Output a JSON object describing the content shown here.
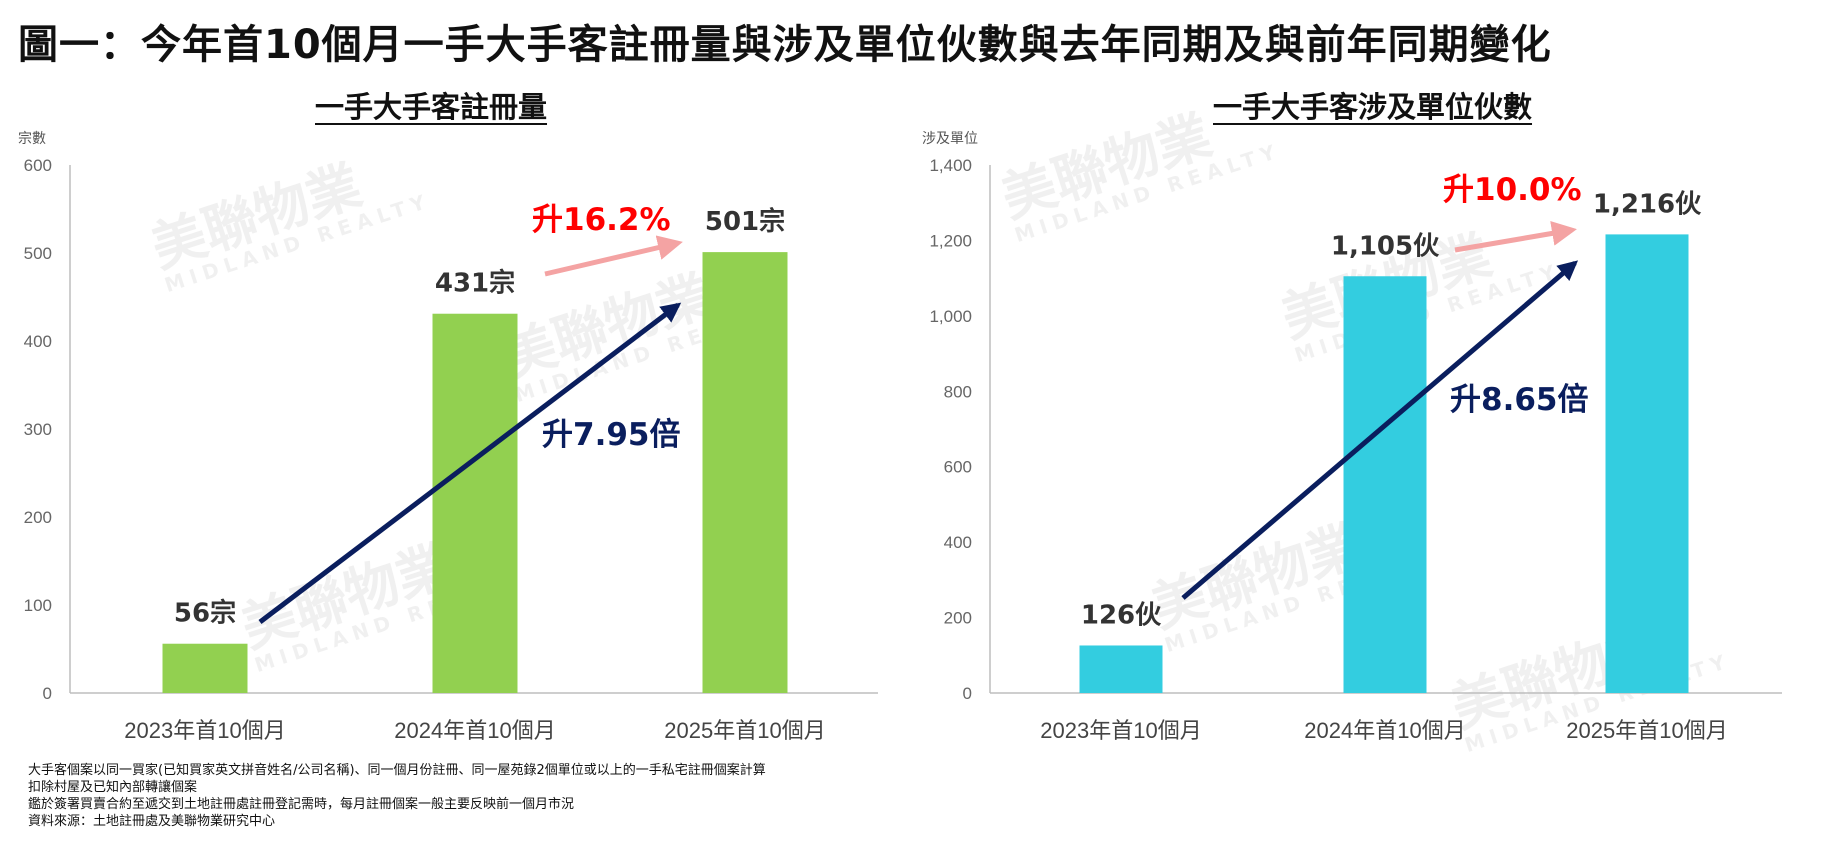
{
  "title": "圖一：今年首10個月一手大手客註冊量與涉及單位伙數與去年同期及與前年同期變化",
  "watermark": {
    "cn": "美聯物業",
    "en": "MIDLAND REALTY"
  },
  "colors": {
    "green": "#92d050",
    "cyan": "#33cde0",
    "red_arrow": "#f4a3a3",
    "navy": "#0a1e5e",
    "red_text": "#ff0000"
  },
  "chart_data": [
    {
      "type": "bar",
      "title": "一手大手客註冊量",
      "ylabel": "宗數",
      "categories": [
        "2023年首10個月",
        "2024年首10個月",
        "2025年首10個月"
      ],
      "values": [
        56,
        431,
        501
      ],
      "data_labels": [
        "56宗",
        "431宗",
        "501宗"
      ],
      "ylim": [
        0,
        600
      ],
      "yticks": [
        0,
        100,
        200,
        300,
        400,
        500,
        600
      ],
      "ytick_labels": [
        "0",
        "100",
        "200",
        "300",
        "400",
        "500",
        "600"
      ],
      "color": "#92d050",
      "annotations": {
        "yoy": "升16.2%",
        "long": "升7.95倍"
      }
    },
    {
      "type": "bar",
      "title": "一手大手客涉及單位伙數",
      "ylabel": "涉及單位",
      "categories": [
        "2023年首10個月",
        "2024年首10個月",
        "2025年首10個月"
      ],
      "values": [
        126,
        1105,
        1216
      ],
      "data_labels": [
        "126伙",
        "1,105伙",
        "1,216伙"
      ],
      "ylim": [
        0,
        1400
      ],
      "yticks": [
        0,
        200,
        400,
        600,
        800,
        1000,
        1200,
        1400
      ],
      "ytick_labels": [
        "0",
        "200",
        "400",
        "600",
        "800",
        "1,000",
        "1,200",
        "1,400"
      ],
      "color": "#33cde0",
      "annotations": {
        "yoy": "升10.0%",
        "long": "升8.65倍"
      }
    }
  ],
  "notes": [
    "大手客個案以同一買家(已知買家英文拼音姓名/公司名稱)、同一個月份註冊、同一屋苑錄2個單位或以上的一手私宅註冊個案計算",
    "扣除村屋及已知內部轉讓個案",
    "鑑於簽署買賣合約至遞交到土地註冊處註冊登記需時，每月註冊個案一般主要反映前一個月市況",
    "資料來源：土地註冊處及美聯物業研究中心"
  ]
}
